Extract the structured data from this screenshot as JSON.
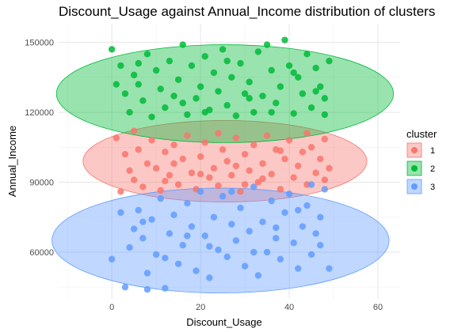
{
  "chart_data": {
    "type": "scatter",
    "title": "Discount_Usage against Annual_Income distribution of clusters",
    "xlabel": "Discount_Usage",
    "ylabel": "Annual_Income",
    "xlim": [
      -12,
      65
    ],
    "ylim": [
      40000,
      158000
    ],
    "x_ticks": [
      0,
      20,
      40,
      60
    ],
    "y_ticks": [
      60000,
      90000,
      120000,
      150000
    ],
    "y_tick_labels": [
      "60000",
      "90000",
      "120000",
      "150000"
    ],
    "grid": true,
    "legend": {
      "title": "cluster",
      "position": "right",
      "entries": [
        "1",
        "2",
        "3"
      ]
    },
    "series": [
      {
        "name": "1",
        "color": "#F8766D",
        "ellipse": {
          "cx": 25.5,
          "cy": 99000,
          "rx": 32,
          "ry": 17500
        },
        "points": [
          [
            1,
            109000
          ],
          [
            3,
            102000
          ],
          [
            4,
            95000
          ],
          [
            5,
            91000
          ],
          [
            6,
            104000
          ],
          [
            2,
            86000
          ],
          [
            7,
            88000
          ],
          [
            8,
            98000
          ],
          [
            9,
            108000
          ],
          [
            10,
            96000
          ],
          [
            11,
            86500
          ],
          [
            12,
            103000
          ],
          [
            13,
            93000
          ],
          [
            14,
            106000
          ],
          [
            15,
            89000
          ],
          [
            16,
            100000
          ],
          [
            17,
            110000
          ],
          [
            18,
            94000
          ],
          [
            19,
            87000
          ],
          [
            20,
            101000
          ],
          [
            21,
            107000
          ],
          [
            22,
            92000
          ],
          [
            23,
            96000
          ],
          [
            24,
            88500
          ],
          [
            25,
            104000
          ],
          [
            26,
            99000
          ],
          [
            27,
            93000
          ],
          [
            28,
            109000
          ],
          [
            29,
            86000
          ],
          [
            30,
            102000
          ],
          [
            31,
            95000
          ],
          [
            32,
            106000
          ],
          [
            33,
            90000
          ],
          [
            34,
            98000
          ],
          [
            35,
            110000
          ],
          [
            36,
            93500
          ],
          [
            37,
            104000
          ],
          [
            38,
            87000
          ],
          [
            39,
            100000
          ],
          [
            40,
            108000
          ],
          [
            41,
            92000
          ],
          [
            42,
            97000
          ],
          [
            43,
            103000
          ],
          [
            44,
            89000
          ],
          [
            45,
            105000
          ],
          [
            46,
            94000
          ],
          [
            47,
            100000
          ],
          [
            48,
            108500
          ],
          [
            49,
            96000
          ],
          [
            48,
            91000
          ],
          [
            5,
            112000
          ],
          [
            14,
            98000
          ],
          [
            24,
            111000
          ],
          [
            34,
            91500
          ],
          [
            44,
            111000
          ],
          [
            12,
            90500
          ],
          [
            28,
            97000
          ],
          [
            38,
            103500
          ],
          [
            20,
            93500
          ],
          [
            30,
            89000
          ]
        ]
      },
      {
        "name": "2",
        "color": "#00BA38",
        "ellipse": {
          "cx": 25.5,
          "cy": 128000,
          "rx": 38,
          "ry": 21000
        },
        "points": [
          [
            0,
            147000
          ],
          [
            2,
            140000
          ],
          [
            3,
            128000
          ],
          [
            4,
            120000
          ],
          [
            5,
            136000
          ],
          [
            6,
            132000
          ],
          [
            7,
            125000
          ],
          [
            8,
            145000
          ],
          [
            9,
            118000
          ],
          [
            10,
            138000
          ],
          [
            11,
            130000
          ],
          [
            12,
            122000
          ],
          [
            13,
            142000
          ],
          [
            14,
            127000
          ],
          [
            15,
            134000
          ],
          [
            16,
            149000
          ],
          [
            17,
            119000
          ],
          [
            18,
            140000
          ],
          [
            19,
            126000
          ],
          [
            20,
            131000
          ],
          [
            21,
            144000
          ],
          [
            22,
            121000
          ],
          [
            23,
            137000
          ],
          [
            24,
            129000
          ],
          [
            25,
            147000
          ],
          [
            26,
            123000
          ],
          [
            27,
            135000
          ],
          [
            28,
            118500
          ],
          [
            29,
            141000
          ],
          [
            30,
            128000
          ],
          [
            31,
            133000
          ],
          [
            32,
            120000
          ],
          [
            33,
            146000
          ],
          [
            34,
            127000
          ],
          [
            35,
            149000
          ],
          [
            36,
            138000
          ],
          [
            37,
            124000
          ],
          [
            38,
            131000
          ],
          [
            39,
            151000
          ],
          [
            40,
            140000
          ],
          [
            41,
            119500
          ],
          [
            42,
            135000
          ],
          [
            43,
            128000
          ],
          [
            44,
            145000
          ],
          [
            45,
            122000
          ],
          [
            46,
            139000
          ],
          [
            47,
            131000
          ],
          [
            48,
            126000
          ],
          [
            49,
            142000
          ],
          [
            48,
            119000
          ],
          [
            1,
            132000
          ],
          [
            6,
            141000
          ],
          [
            16,
            124000
          ],
          [
            26,
            142000
          ],
          [
            36,
            120000
          ],
          [
            46,
            129000
          ],
          [
            21,
            120000
          ],
          [
            31,
            126000
          ],
          [
            41,
            137000
          ]
        ]
      },
      {
        "name": "3",
        "color": "#619CFF",
        "ellipse": {
          "cx": 24.5,
          "cy": 65000,
          "rx": 38,
          "ry": 22500
        },
        "points": [
          [
            0,
            57000
          ],
          [
            3,
            45000
          ],
          [
            4,
            62000
          ],
          [
            5,
            70000
          ],
          [
            6,
            78000
          ],
          [
            7,
            66000
          ],
          [
            8,
            51000
          ],
          [
            8,
            44000
          ],
          [
            9,
            74000
          ],
          [
            10,
            59000
          ],
          [
            11,
            83000
          ],
          [
            12,
            44500
          ],
          [
            13,
            68000
          ],
          [
            14,
            76000
          ],
          [
            15,
            55000
          ],
          [
            16,
            63000
          ],
          [
            17,
            81000
          ],
          [
            18,
            71000
          ],
          [
            19,
            52000
          ],
          [
            20,
            86000
          ],
          [
            21,
            67000
          ],
          [
            22,
            49000
          ],
          [
            23,
            75000
          ],
          [
            24,
            61000
          ],
          [
            25,
            84000
          ],
          [
            26,
            58000
          ],
          [
            27,
            72000
          ],
          [
            28,
            65000
          ],
          [
            29,
            79000
          ],
          [
            30,
            54000
          ],
          [
            31,
            69000
          ],
          [
            32,
            88000
          ],
          [
            33,
            50000
          ],
          [
            34,
            73000
          ],
          [
            35,
            60000
          ],
          [
            36,
            82000
          ],
          [
            37,
            66000
          ],
          [
            38,
            57000
          ],
          [
            39,
            77000
          ],
          [
            40,
            85000
          ],
          [
            41,
            64000
          ],
          [
            42,
            53000
          ],
          [
            43,
            71000
          ],
          [
            44,
            80000
          ],
          [
            45,
            59000
          ],
          [
            46,
            68000
          ],
          [
            47,
            75000
          ],
          [
            48,
            87000
          ],
          [
            49,
            53000
          ],
          [
            47,
            63000
          ],
          [
            2,
            77000
          ],
          [
            12,
            57500
          ],
          [
            22,
            62500
          ],
          [
            32,
            60000
          ],
          [
            42,
            78000
          ],
          [
            17,
            67000
          ],
          [
            27,
            86000
          ],
          [
            37,
            70500
          ],
          [
            7,
            73000
          ],
          [
            45,
            89000
          ]
        ]
      }
    ]
  }
}
